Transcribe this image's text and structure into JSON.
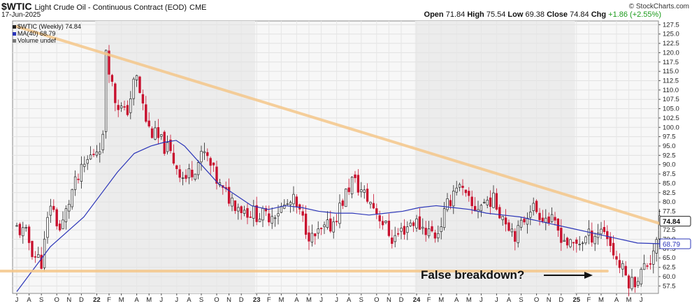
{
  "header": {
    "symbol": "$WTIC",
    "description": "Light Crude Oil - Continuous Contract (EOD)",
    "exchange": "CME",
    "date": "17-Jun-2025",
    "open_label": "Open",
    "open": "71.84",
    "high_label": "High",
    "high": "75.54",
    "low_label": "Low",
    "low": "69.38",
    "close_label": "Close",
    "close": "74.84",
    "chg_label": "Chg",
    "chg": "+1.86 (+2.55%)",
    "brand": "© StockCharts.com"
  },
  "legend": [
    {
      "label": "$WTIC (Weekly) 74.84",
      "color": "#222222"
    },
    {
      "label": "MA(40) 68.79",
      "color": "#2b35b8"
    },
    {
      "label": "Volume undef",
      "color": "#777777"
    }
  ],
  "annotation": {
    "text": "False breakdown?"
  },
  "colors": {
    "up": "#222222",
    "down": "#c8102e",
    "ma": "#2b35b8",
    "trendline": "#f5c78a",
    "shade": "#ececec",
    "ma_box": "#2b35b8"
  },
  "chart_data": {
    "type": "candlestick",
    "period": "weekly",
    "ylim": [
      55.5,
      128.5
    ],
    "y_ticks": [
      57.5,
      60.0,
      62.5,
      65.0,
      67.5,
      70.0,
      72.5,
      75.0,
      77.5,
      80.0,
      82.5,
      85.0,
      87.5,
      90.0,
      92.5,
      95.0,
      97.5,
      100.0,
      102.5,
      105.0,
      107.5,
      110.0,
      112.5,
      115.0,
      117.5,
      120.0,
      122.5,
      125.0,
      127.5
    ],
    "last_price_label": "74.84",
    "ma_label": "68.79",
    "x_ticks": [
      "J",
      "A",
      "S",
      "O",
      "N",
      "D",
      "22",
      "F",
      "M",
      "A",
      "M",
      "J",
      "J",
      "A",
      "S",
      "O",
      "N",
      "D",
      "23",
      "F",
      "M",
      "A",
      "M",
      "J",
      "J",
      "A",
      "S",
      "O",
      "N",
      "D",
      "24",
      "F",
      "M",
      "A",
      "M",
      "J",
      "J",
      "A",
      "S",
      "O",
      "N",
      "D",
      "25",
      "F",
      "M",
      "A",
      "M",
      "J"
    ],
    "x_tick_index": [
      0,
      4,
      8,
      13,
      17,
      21,
      26,
      30,
      34,
      39,
      43,
      47,
      52,
      56,
      60,
      65,
      69,
      73,
      78,
      82,
      86,
      91,
      95,
      99,
      104,
      108,
      112,
      117,
      121,
      125,
      130,
      134,
      138,
      143,
      147,
      151,
      156,
      160,
      164,
      169,
      173,
      177,
      182,
      186,
      190,
      195,
      199,
      203
    ],
    "shaded_ranges": [
      [
        26,
        78
      ],
      [
        130,
        182
      ]
    ],
    "close_path": [
      [
        0,
        73
      ],
      [
        6,
        71
      ],
      [
        10,
        66
      ],
      [
        15,
        64
      ],
      [
        20,
        80
      ],
      [
        26,
        72
      ],
      [
        33,
        83
      ],
      [
        42,
        91
      ],
      [
        52,
        97
      ],
      [
        53,
        122
      ],
      [
        58,
        108
      ],
      [
        65,
        103
      ],
      [
        71,
        114
      ],
      [
        78,
        100
      ],
      [
        90,
        94
      ],
      [
        100,
        86
      ],
      [
        112,
        93
      ],
      [
        122,
        83
      ],
      [
        135,
        78
      ],
      [
        148,
        76
      ],
      [
        165,
        80
      ],
      [
        176,
        70
      ],
      [
        188,
        74
      ],
      [
        200,
        86
      ],
      [
        214,
        78
      ],
      [
        224,
        70
      ],
      [
        236,
        75
      ],
      [
        250,
        71
      ],
      [
        262,
        85
      ],
      [
        272,
        78
      ],
      [
        283,
        81
      ],
      [
        298,
        71
      ],
      [
        306,
        79
      ],
      [
        318,
        75
      ],
      [
        330,
        68
      ],
      [
        338,
        70
      ],
      [
        350,
        73
      ],
      [
        358,
        64
      ],
      [
        366,
        58
      ],
      [
        372,
        61
      ],
      [
        378,
        65
      ],
      [
        383,
        74
      ],
      [
        385,
        74.84
      ]
    ],
    "ma40": [
      [
        0,
        56
      ],
      [
        10,
        62
      ],
      [
        20,
        68
      ],
      [
        30,
        72
      ],
      [
        40,
        76
      ],
      [
        50,
        82
      ],
      [
        60,
        88
      ],
      [
        70,
        93
      ],
      [
        80,
        95
      ],
      [
        88,
        96
      ],
      [
        95,
        96.5
      ],
      [
        100,
        95
      ],
      [
        110,
        90
      ],
      [
        120,
        85
      ],
      [
        130,
        82
      ],
      [
        140,
        79
      ],
      [
        150,
        78
      ],
      [
        160,
        79
      ],
      [
        170,
        78.5
      ],
      [
        180,
        77.5
      ],
      [
        190,
        77
      ],
      [
        200,
        77
      ],
      [
        210,
        76.5
      ],
      [
        220,
        77
      ],
      [
        230,
        77.5
      ],
      [
        240,
        78.5
      ],
      [
        250,
        79
      ],
      [
        260,
        78.5
      ],
      [
        270,
        78
      ],
      [
        280,
        77
      ],
      [
        290,
        76.5
      ],
      [
        300,
        76
      ],
      [
        310,
        75
      ],
      [
        320,
        74
      ],
      [
        330,
        73
      ],
      [
        340,
        72
      ],
      [
        350,
        71
      ],
      [
        360,
        70
      ],
      [
        370,
        69
      ],
      [
        385,
        68.79
      ]
    ],
    "trendlines": [
      {
        "from": [
          0,
          127
        ],
        "to": [
          385,
          74
        ]
      },
      {
        "from": [
          -36,
          61.5
        ],
        "to": [
          352,
          61.5
        ]
      }
    ]
  }
}
